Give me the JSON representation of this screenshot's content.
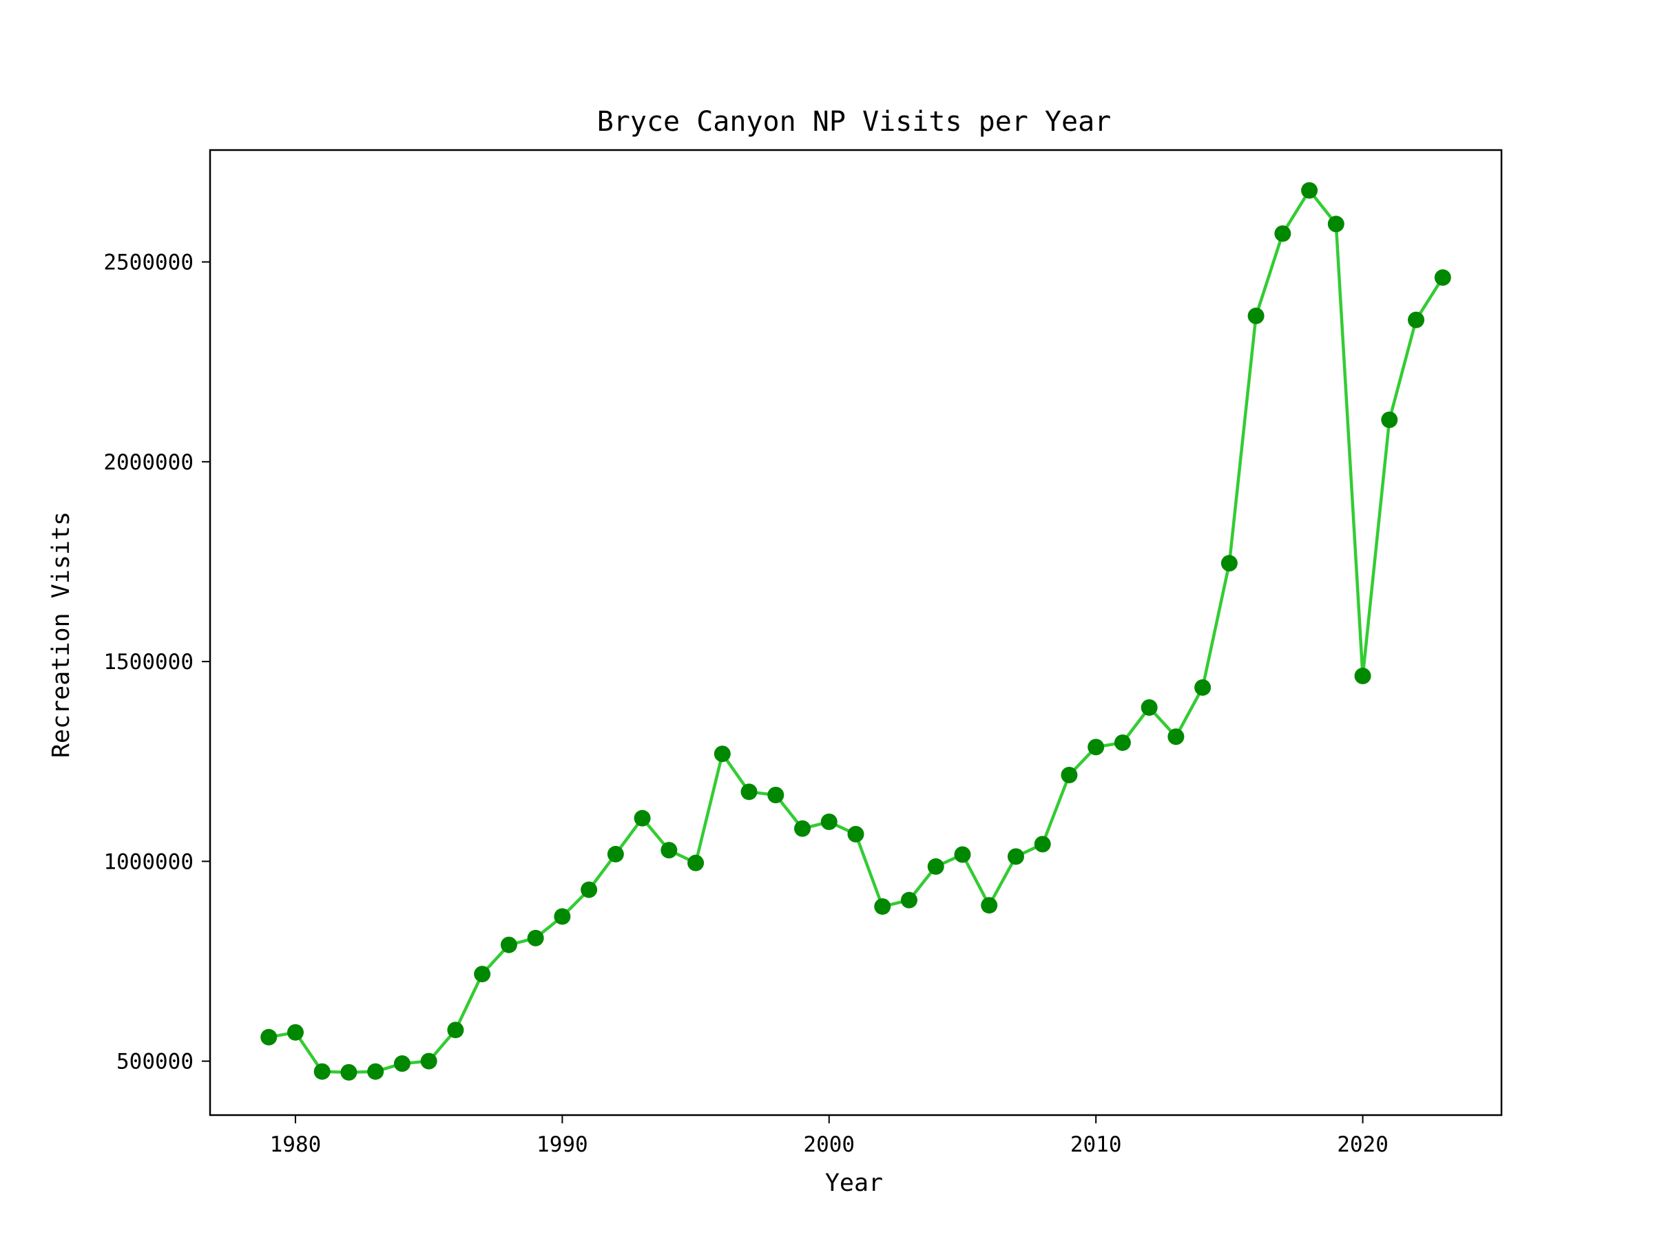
{
  "chart_data": {
    "type": "line",
    "title": "Bryce Canyon NP Visits per Year",
    "xlabel": "Year",
    "ylabel": "Recreation Visits",
    "xlim": [
      1976.8,
      2025.2
    ],
    "ylim": [
      365000,
      2780000
    ],
    "xticks": [
      1980,
      1990,
      2000,
      2010,
      2020
    ],
    "yticks": [
      500000,
      1000000,
      1500000,
      2000000,
      2500000
    ],
    "grid": false,
    "line_color": "#33cc33",
    "marker_color": "#008800",
    "series": [
      {
        "x": [
          1979,
          1980,
          1981,
          1982,
          1983,
          1984,
          1985,
          1986,
          1987,
          1988,
          1989,
          1990,
          1991,
          1992,
          1993,
          1994,
          1995,
          1996,
          1997,
          1998,
          1999,
          2000,
          2001,
          2002,
          2003,
          2004,
          2005,
          2006,
          2007,
          2008,
          2009,
          2010,
          2011,
          2012,
          2013,
          2014,
          2015,
          2016,
          2017,
          2018,
          2019,
          2020,
          2021,
          2022,
          2023
        ],
        "y": [
          560000,
          572000,
          474000,
          472000,
          474000,
          494000,
          500000,
          578000,
          718000,
          791000,
          808000,
          862000,
          929000,
          1018000,
          1108000,
          1028000,
          996000,
          1269000,
          1174000,
          1166000,
          1082000,
          1099000,
          1068000,
          887000,
          903000,
          987000,
          1017000,
          890000,
          1012000,
          1043000,
          1216000,
          1286000,
          1297000,
          1385000,
          1312000,
          1435000,
          1746000,
          2365000,
          2571000,
          2679000,
          2595000,
          1464000,
          2105000,
          2355000,
          2461000
        ]
      }
    ]
  }
}
